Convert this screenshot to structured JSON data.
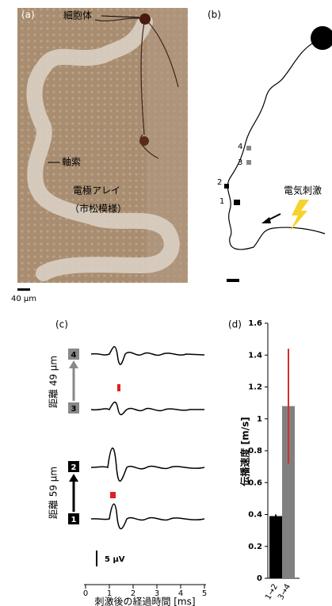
{
  "panel_a": {
    "label": "(a)",
    "soma": "細胞体",
    "axon": "軸索",
    "electrode_array": "電極アレイ",
    "checker": "（市松模様）",
    "scale": "40 µm"
  },
  "panel_b": {
    "label": "(b)",
    "points": [
      "1",
      "2",
      "3",
      "4"
    ],
    "stimulus": "電気刺激"
  },
  "panel_c": {
    "label": "(c)",
    "distance_34": "距離 49 µm",
    "distance_12": "距離 59 µm",
    "scale": "5 µV",
    "xlabel": "刺激後の経過時間 [ms]",
    "xlim": [
      0,
      5
    ],
    "xticks": [
      0,
      1,
      2,
      3,
      4,
      5
    ],
    "electrodes": [
      "1",
      "2",
      "3",
      "4"
    ]
  },
  "chart_data": {
    "type": "bar",
    "label": "(d)",
    "ylabel": "伝播速度 [m/s]",
    "categories": [
      "1→2",
      "3→4"
    ],
    "values": [
      0.39,
      1.08
    ],
    "errors": [
      0.01,
      0.36
    ],
    "colors": [
      "#000000",
      "#808080"
    ],
    "error_colors": [
      "#000000",
      "#d03030"
    ],
    "ylim": [
      0,
      1.6
    ],
    "yticks": [
      0,
      0.2,
      0.4,
      0.6,
      0.8,
      1,
      1.2,
      1.4,
      1.6
    ]
  }
}
